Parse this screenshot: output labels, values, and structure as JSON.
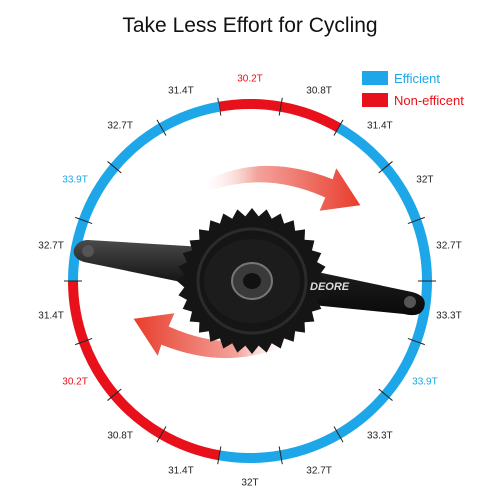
{
  "title": "Take Less Effort for Cycling",
  "colors": {
    "efficient": "#1EA7E8",
    "non_efficient": "#E8101A",
    "text": "#222222",
    "tick": "#222222"
  },
  "legend": {
    "efficient_label": "Efficient",
    "non_efficient_label": "Non-efficent"
  },
  "ring": {
    "segments": [
      {
        "label": "30.2T",
        "type": "non_efficient"
      },
      {
        "label": "30.8T",
        "type": "non_efficient"
      },
      {
        "label": "31.4T",
        "type": "efficient"
      },
      {
        "label": "32T",
        "type": "efficient"
      },
      {
        "label": "32.7T",
        "type": "efficient"
      },
      {
        "label": "33.3T",
        "type": "efficient"
      },
      {
        "label": "33.9T",
        "type": "efficient",
        "highlight": true
      },
      {
        "label": "33.3T",
        "type": "efficient"
      },
      {
        "label": "32.7T",
        "type": "efficient"
      },
      {
        "label": "32T",
        "type": "efficient"
      },
      {
        "label": "31.4T",
        "type": "non_efficient"
      },
      {
        "label": "30.8T",
        "type": "non_efficient"
      },
      {
        "label": "30.2T",
        "type": "non_efficient"
      },
      {
        "label": "31.4T",
        "type": "non_efficient"
      },
      {
        "label": "32.7T",
        "type": "efficient"
      },
      {
        "label": "33.9T",
        "type": "efficient",
        "highlight": true
      },
      {
        "label": "32.7T",
        "type": "efficient"
      },
      {
        "label": "31.4T",
        "type": "efficient"
      }
    ]
  },
  "crank": {
    "brand_text": "DEORE"
  }
}
